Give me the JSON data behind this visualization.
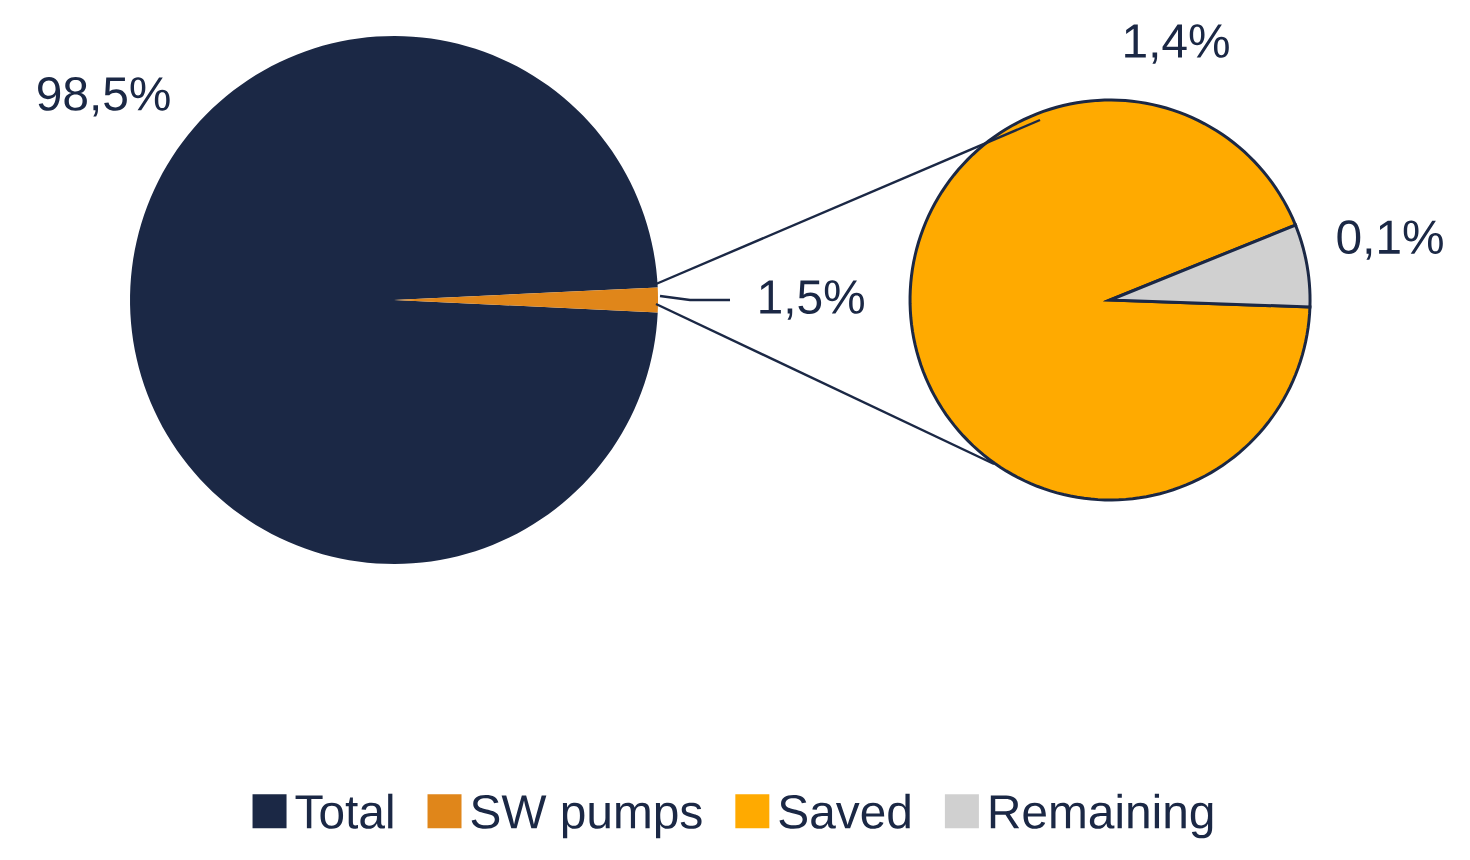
{
  "chart_data": [
    {
      "type": "pie",
      "categories": [
        "Total",
        "SW pumps"
      ],
      "values": [
        98.5,
        1.5
      ],
      "colors": [
        "#1b2845",
        "#e0861a"
      ],
      "value_labels": [
        "98,5%",
        "1,5%"
      ],
      "legend": "bottom"
    },
    {
      "type": "pie",
      "categories": [
        "Saved",
        "Remaining"
      ],
      "values": [
        1.4,
        0.1
      ],
      "colors": [
        "#ffaa00",
        "#d0d0d0"
      ],
      "value_labels": [
        "1,4%",
        "0,1%"
      ],
      "legend": "bottom"
    }
  ]
}
